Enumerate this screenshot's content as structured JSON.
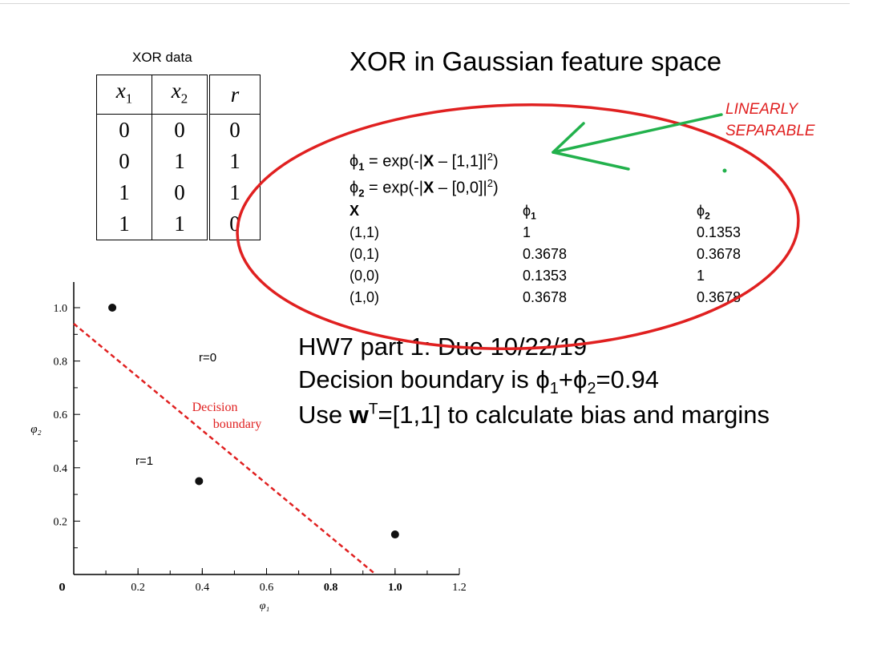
{
  "slide": {
    "title": "XOR in Gaussian feature space"
  },
  "xor_table": {
    "caption": "XOR data",
    "headers": [
      "x",
      "1",
      "x",
      "2",
      "r"
    ],
    "rows": [
      [
        "0",
        "0",
        "0"
      ],
      [
        "0",
        "1",
        "1"
      ],
      [
        "1",
        "0",
        "1"
      ],
      [
        "1",
        "1",
        "0"
      ]
    ]
  },
  "annotation": {
    "line1": "LINEARLY",
    "line2": "SEPARABLE",
    "color": "#e02020",
    "arrow_color": "#22b14c"
  },
  "formulas": {
    "phi": "ϕ",
    "phi1_sub": "1",
    "phi2_sub": "2",
    "f1_pre": " = exp(-|",
    "bold_x": "X",
    "f1_post": " – [1,1]|",
    "sq": "2",
    "close": ")",
    "f2_post": " – [0,0]|"
  },
  "feature_table": {
    "headers": [
      "X",
      "ϕ",
      "ϕ"
    ],
    "header_subs": [
      "",
      "1",
      "2"
    ],
    "rows": [
      [
        "(1,1)",
        "1",
        "0.1353"
      ],
      [
        "(0,1)",
        "0.3678",
        "0.3678"
      ],
      [
        "(0,0)",
        "0.1353",
        "1"
      ],
      [
        "(1,0)",
        "0.3678",
        "0.3678"
      ]
    ]
  },
  "homework": {
    "line1": "HW7 part 1: Due 10/22/19",
    "line2_pre": "Decision boundary is ",
    "phi": "ϕ",
    "sub1": "1",
    "plus": "+",
    "sub2": "2",
    "line2_post": "=0.94",
    "line3_pre": "Use ",
    "w": "w",
    "sup": "T",
    "line3_post": "=[1,1] to calculate bias and margins"
  },
  "chart_data": {
    "type": "scatter",
    "x": [
      0.12,
      0.39,
      1.0
    ],
    "y": [
      1.0,
      0.35,
      0.15
    ],
    "xticks": [
      "0",
      "0.2",
      "0.4",
      "0.6",
      "0.8",
      "1.0",
      "1.2"
    ],
    "yticks": [
      "0.2",
      "0.4",
      "0.6",
      "0.8",
      "1.0"
    ],
    "xlabel": "φ₁",
    "ylabel": "φ₂",
    "xlim": [
      0,
      1.2
    ],
    "ylim": [
      0,
      1.0
    ],
    "boundary": {
      "x": [
        0,
        0.94
      ],
      "y": [
        0.94,
        0
      ],
      "label1": "Decision",
      "label2": "boundary",
      "color": "#e02020"
    },
    "region_labels": {
      "r0": "r=0",
      "r1": "r=1"
    }
  }
}
